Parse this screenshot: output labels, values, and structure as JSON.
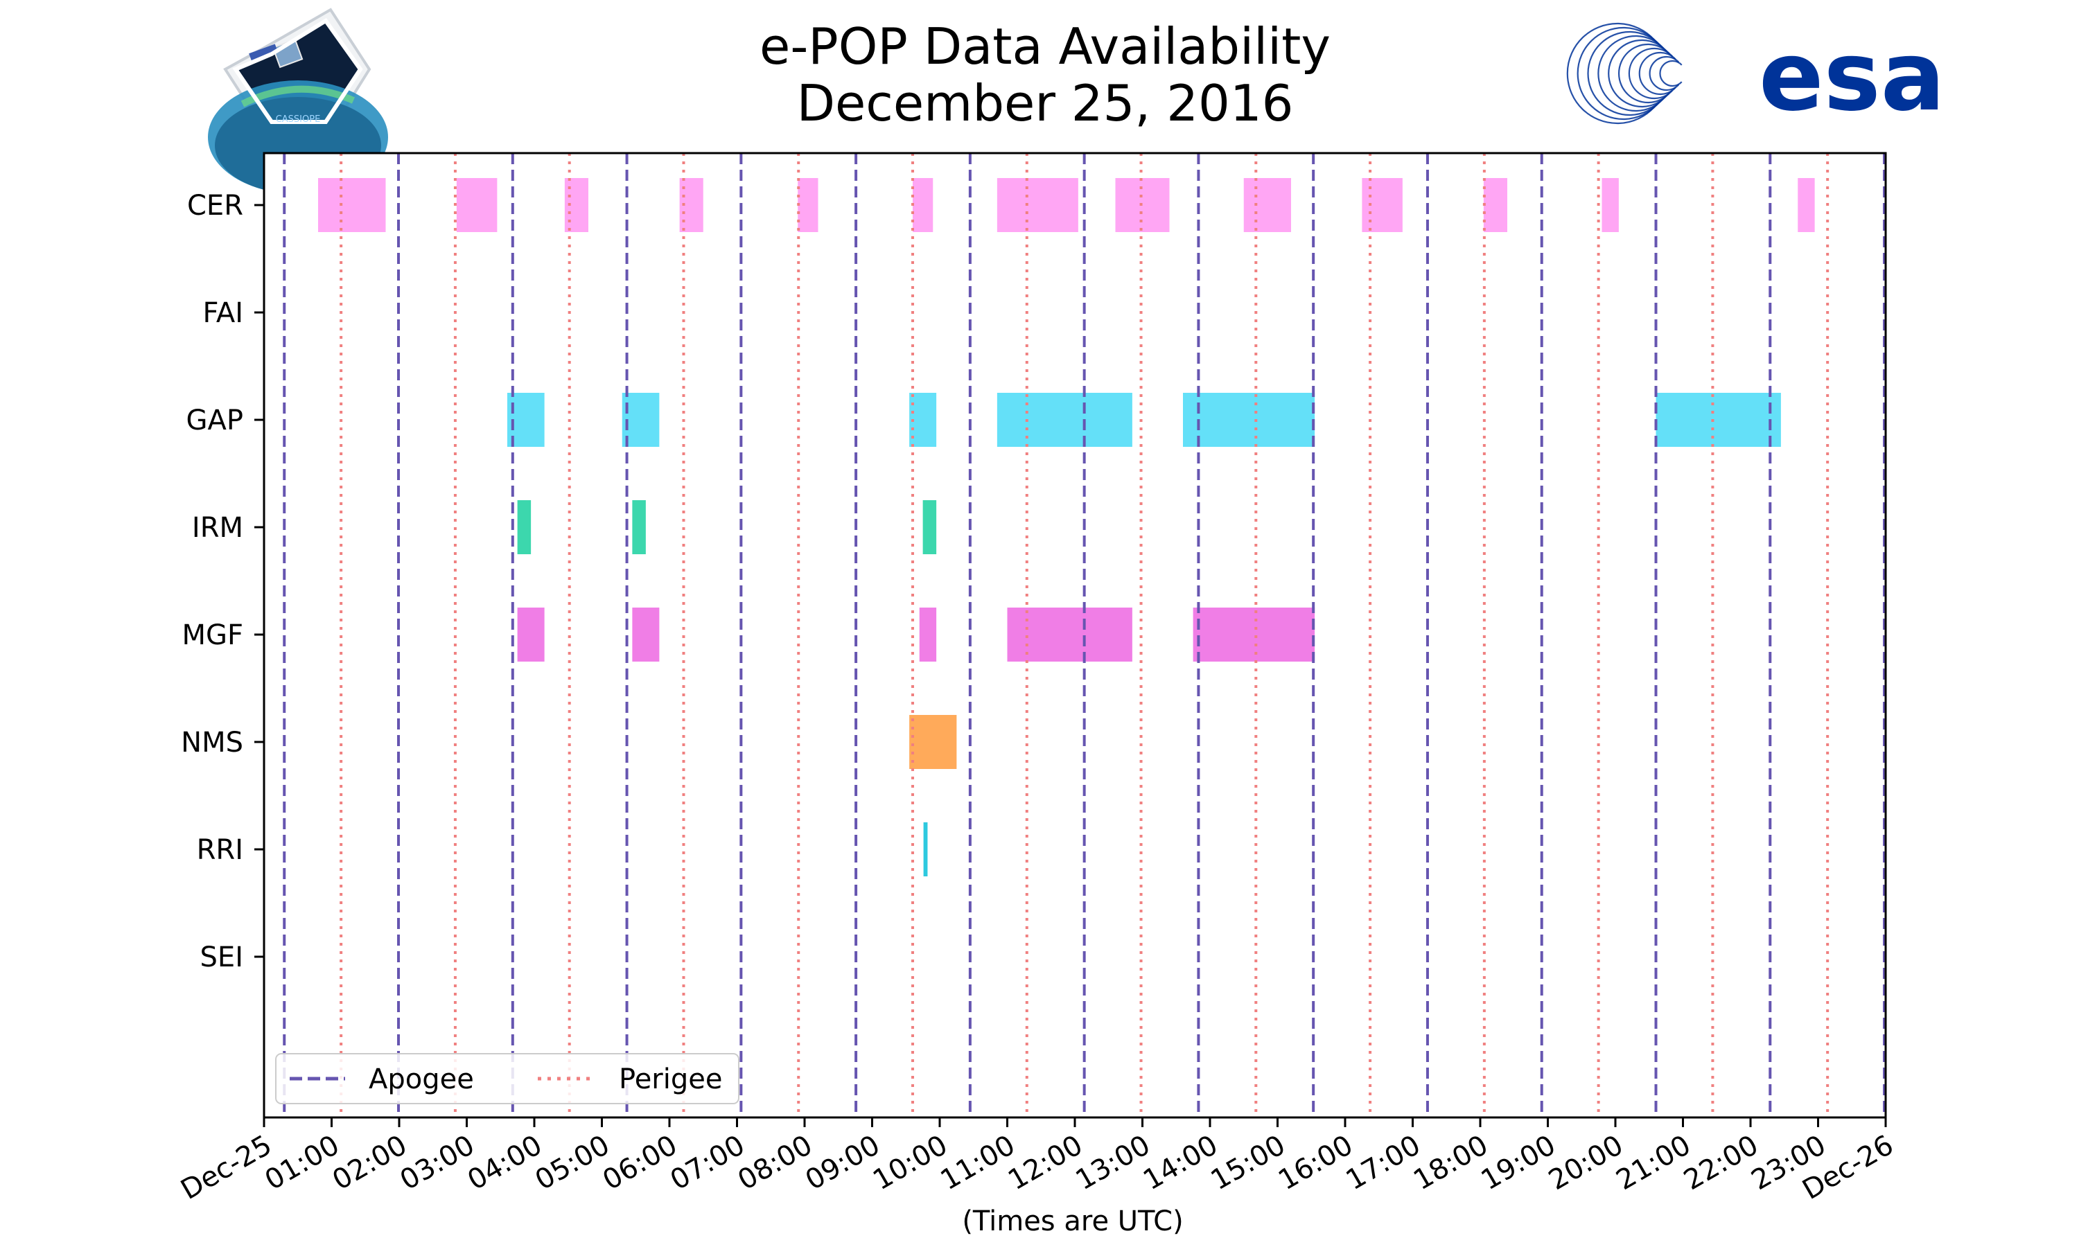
{
  "chart_data": {
    "type": "timeline",
    "title": [
      "e-POP Data Availability",
      "December 25, 2016"
    ],
    "xlabel": "(Times are UTC)",
    "xlim_hours": [
      0,
      24
    ],
    "x_ticks": [
      {
        "hour": 0,
        "label": "Dec-25"
      },
      {
        "hour": 1,
        "label": "01:00"
      },
      {
        "hour": 2,
        "label": "02:00"
      },
      {
        "hour": 3,
        "label": "03:00"
      },
      {
        "hour": 4,
        "label": "04:00"
      },
      {
        "hour": 5,
        "label": "05:00"
      },
      {
        "hour": 6,
        "label": "06:00"
      },
      {
        "hour": 7,
        "label": "07:00"
      },
      {
        "hour": 8,
        "label": "08:00"
      },
      {
        "hour": 9,
        "label": "09:00"
      },
      {
        "hour": 10,
        "label": "10:00"
      },
      {
        "hour": 11,
        "label": "11:00"
      },
      {
        "hour": 12,
        "label": "12:00"
      },
      {
        "hour": 13,
        "label": "13:00"
      },
      {
        "hour": 14,
        "label": "14:00"
      },
      {
        "hour": 15,
        "label": "15:00"
      },
      {
        "hour": 16,
        "label": "16:00"
      },
      {
        "hour": 17,
        "label": "17:00"
      },
      {
        "hour": 18,
        "label": "18:00"
      },
      {
        "hour": 19,
        "label": "19:00"
      },
      {
        "hour": 20,
        "label": "20:00"
      },
      {
        "hour": 21,
        "label": "21:00"
      },
      {
        "hour": 22,
        "label": "22:00"
      },
      {
        "hour": 23,
        "label": "23:00"
      },
      {
        "hour": 24,
        "label": "Dec-26"
      }
    ],
    "instruments": [
      {
        "name": "CER",
        "color": "#ffa6f4",
        "intervals": [
          [
            0.8,
            1.8
          ],
          [
            2.85,
            3.45
          ],
          [
            4.45,
            4.8
          ],
          [
            6.15,
            6.5
          ],
          [
            7.9,
            8.2
          ],
          [
            9.6,
            9.9
          ],
          [
            10.85,
            12.05
          ],
          [
            12.6,
            13.4
          ],
          [
            14.5,
            15.2
          ],
          [
            16.25,
            16.85
          ],
          [
            18.05,
            18.4
          ],
          [
            19.8,
            20.05
          ],
          [
            22.7,
            22.95
          ]
        ]
      },
      {
        "name": "FAI",
        "color": "#b0b0ff",
        "intervals": []
      },
      {
        "name": "GAP",
        "color": "#64e0f8",
        "intervals": [
          [
            3.6,
            4.15
          ],
          [
            5.3,
            5.85
          ],
          [
            9.55,
            9.95
          ],
          [
            10.85,
            12.85
          ],
          [
            13.6,
            15.55
          ],
          [
            20.6,
            22.45
          ]
        ]
      },
      {
        "name": "IRM",
        "color": "#3cd7ad",
        "intervals": [
          [
            3.75,
            3.95
          ],
          [
            5.45,
            5.65
          ],
          [
            9.75,
            9.95
          ]
        ]
      },
      {
        "name": "MGF",
        "color": "#f07ee6",
        "intervals": [
          [
            3.75,
            4.15
          ],
          [
            5.45,
            5.85
          ],
          [
            9.7,
            9.95
          ],
          [
            11.0,
            12.85
          ],
          [
            13.75,
            15.55
          ]
        ]
      },
      {
        "name": "NMS",
        "color": "#ffaa5a",
        "intervals": [
          [
            9.55,
            10.25
          ]
        ]
      },
      {
        "name": "RRI",
        "color": "#2ec9df",
        "intervals": [
          [
            9.76,
            9.82
          ]
        ]
      },
      {
        "name": "SEI",
        "color": "#888888",
        "intervals": []
      }
    ],
    "apogee_hours": [
      0.3,
      1.99,
      3.68,
      5.37,
      7.06,
      8.76,
      10.45,
      12.14,
      13.83,
      15.53,
      17.22,
      18.91,
      20.6,
      22.29,
      23.98
    ],
    "perigee_hours": [
      1.14,
      2.83,
      4.52,
      6.21,
      7.91,
      9.6,
      11.29,
      12.98,
      14.68,
      16.37,
      18.06,
      19.75,
      21.44,
      23.14
    ],
    "legend": {
      "placement": "lower-left",
      "entries": [
        {
          "label": "Apogee",
          "style": "dashed",
          "color": "#6655b0"
        },
        {
          "label": "Perigee",
          "style": "dotted",
          "color": "#f08080"
        }
      ]
    }
  },
  "logos": {
    "left": {
      "text": "CASSIOPE"
    },
    "right": {
      "text": "esa"
    }
  }
}
